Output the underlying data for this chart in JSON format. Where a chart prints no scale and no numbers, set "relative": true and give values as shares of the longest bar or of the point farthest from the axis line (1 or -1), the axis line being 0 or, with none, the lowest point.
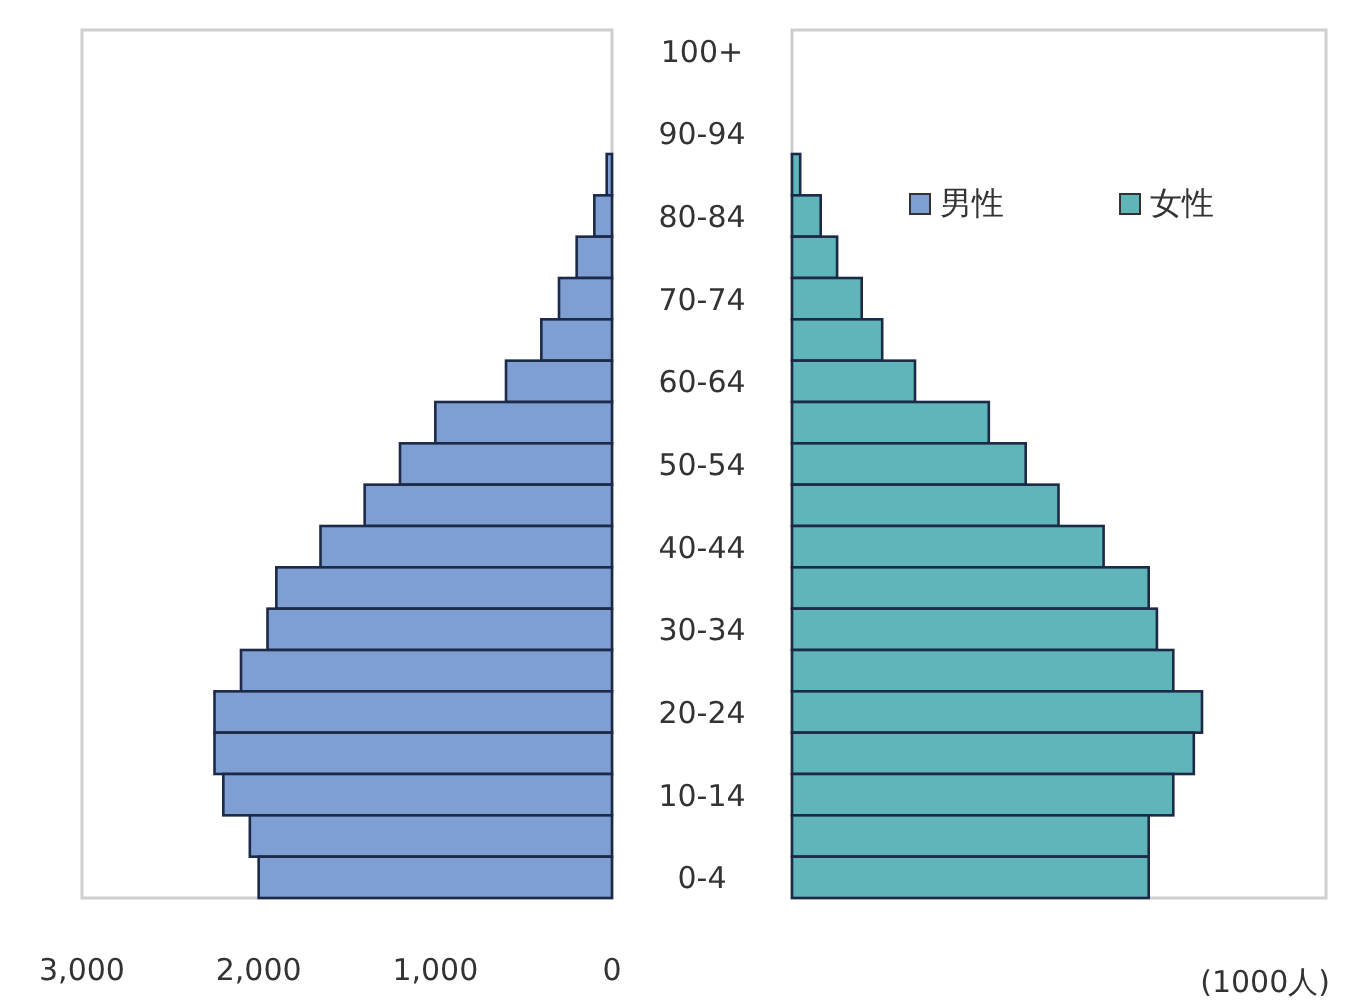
{
  "chart_data": [
    {
      "type": "bar",
      "orientation": "horizontal",
      "categories": [
        "100+",
        null,
        "90-94",
        null,
        "80-84",
        null,
        "70-74",
        null,
        "60-64",
        null,
        "50-54",
        null,
        "40-44",
        null,
        "30-34",
        null,
        "20-24",
        null,
        "10-14",
        null,
        "0-4"
      ],
      "series": [
        {
          "name": "男性",
          "color": "#7f9fd2",
          "values": [
            0,
            0,
            0,
            30,
            100,
            200,
            300,
            400,
            600,
            1000,
            1200,
            1400,
            1650,
            1900,
            1950,
            2100,
            2250,
            2250,
            2200,
            2050,
            2000
          ]
        }
      ],
      "xlim": [
        3000,
        0
      ],
      "xticks": [
        {
          "value": 3000,
          "label": "3,000"
        },
        {
          "value": 2000,
          "label": "2,000"
        },
        {
          "value": 1000,
          "label": "1,000"
        },
        0
      ],
      "legend": "top right"
    },
    {
      "type": "bar",
      "orientation": "horizontal",
      "xlabel": "(1000人)",
      "relative": true,
      "categories": [
        null,
        null,
        null,
        null,
        null,
        null,
        null,
        null,
        null,
        null,
        null,
        null,
        null,
        null,
        null,
        null,
        null,
        null,
        null,
        null,
        null
      ],
      "series": [
        {
          "name": "女性",
          "color": "#5fb5b8",
          "values": [
            0,
            0,
            0,
            0.02,
            0.07,
            0.11,
            0.17,
            0.22,
            0.3,
            0.48,
            0.57,
            0.65,
            0.76,
            0.87,
            0.89,
            0.93,
            1,
            0.98,
            0.93,
            0.87,
            0.87
          ]
        }
      ],
      "legend": "top right"
    }
  ]
}
